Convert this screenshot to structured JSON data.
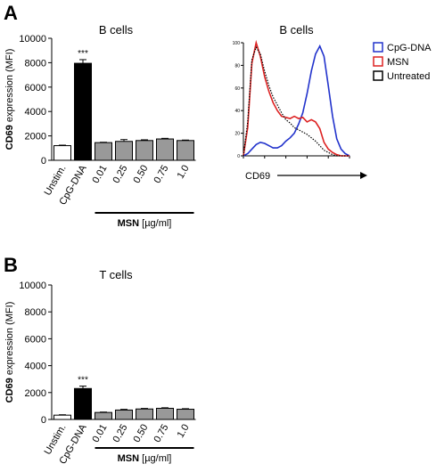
{
  "panels": {
    "a": {
      "letter": "A"
    },
    "b": {
      "letter": "B"
    }
  },
  "chart_data": [
    {
      "type": "bar",
      "id": "a-bar",
      "title": "B cells",
      "ylabel_bold": "CD69",
      "ylabel_rest": " expression (MFI)",
      "ylim": [
        0,
        10000
      ],
      "yticks": [
        0,
        2000,
        4000,
        6000,
        8000,
        10000
      ],
      "categories": [
        "Unstim.",
        "CpG-DNA",
        "0.01",
        "0.25",
        "0.50",
        "0.75",
        "1.0"
      ],
      "values": [
        1200,
        7950,
        1450,
        1550,
        1620,
        1750,
        1620
      ],
      "errors": [
        40,
        300,
        30,
        150,
        60,
        50,
        40
      ],
      "bar_colors": [
        "#ffffff",
        "#000000",
        "#999999",
        "#999999",
        "#999999",
        "#999999",
        "#999999"
      ],
      "significance": {
        "category": "CpG-DNA",
        "label": "***"
      },
      "group_label_bold": "MSN",
      "group_label_rest": " [µg/ml]",
      "group_start": 2,
      "group_end": 6
    },
    {
      "type": "line",
      "id": "a-hist",
      "title": "B cells",
      "xlabel": "CD69",
      "ylim": [
        0,
        100
      ],
      "yticks": [
        0,
        20,
        40,
        60,
        80,
        100
      ],
      "x_scale": "log (unlabeled ticks)",
      "legend_position": "right",
      "series": [
        {
          "name": "CpG-DNA",
          "color": "#2233cc",
          "style": "solid",
          "x": [
            0,
            4,
            8,
            12,
            16,
            20,
            24,
            28,
            32,
            36,
            40,
            44,
            48,
            52,
            56,
            60,
            64,
            68,
            72,
            76,
            80,
            84,
            88,
            92,
            96,
            100
          ],
          "y": [
            0,
            2,
            6,
            10,
            12,
            11,
            9,
            7,
            7,
            9,
            13,
            16,
            20,
            28,
            38,
            55,
            75,
            90,
            97,
            88,
            62,
            35,
            15,
            6,
            2,
            0
          ]
        },
        {
          "name": "MSN",
          "color": "#dd2222",
          "style": "solid",
          "x": [
            0,
            4,
            8,
            12,
            16,
            20,
            24,
            28,
            32,
            36,
            40,
            44,
            48,
            52,
            56,
            60,
            64,
            68,
            72,
            76,
            80,
            84,
            88,
            92,
            96,
            100
          ],
          "y": [
            0,
            25,
            82,
            100,
            88,
            70,
            57,
            47,
            40,
            35,
            34,
            33,
            35,
            33,
            34,
            30,
            32,
            30,
            24,
            12,
            6,
            3,
            1,
            0,
            0,
            0
          ]
        },
        {
          "name": "Untreated",
          "color": "#000000",
          "style": "dotted",
          "x": [
            0,
            4,
            8,
            12,
            16,
            20,
            24,
            28,
            32,
            36,
            40,
            44,
            48,
            52,
            56,
            60,
            64,
            68,
            72,
            76,
            80,
            84,
            88,
            92,
            96,
            100
          ],
          "y": [
            0,
            30,
            85,
            96,
            90,
            75,
            62,
            52,
            45,
            38,
            32,
            29,
            25,
            23,
            21,
            19,
            16,
            13,
            9,
            5,
            3,
            1,
            0,
            0,
            0,
            0
          ]
        }
      ]
    },
    {
      "type": "bar",
      "id": "b-bar",
      "title": "T cells",
      "ylabel_bold": "CD69",
      "ylabel_rest": " expression (MFI)",
      "ylim": [
        0,
        10000
      ],
      "yticks": [
        0,
        2000,
        4000,
        6000,
        8000,
        10000
      ],
      "categories": [
        "Unstim.",
        "CpG-DNA",
        "0.01",
        "0.25",
        "0.50",
        "0.75",
        "1.0"
      ],
      "values": [
        320,
        2300,
        520,
        700,
        780,
        830,
        760
      ],
      "errors": [
        30,
        180,
        30,
        50,
        40,
        40,
        40
      ],
      "bar_colors": [
        "#ffffff",
        "#000000",
        "#999999",
        "#999999",
        "#999999",
        "#999999",
        "#999999"
      ],
      "significance": {
        "category": "CpG-DNA",
        "label": "***"
      },
      "group_label_bold": "MSN",
      "group_label_rest": " [µg/ml]",
      "group_start": 2,
      "group_end": 6
    }
  ]
}
